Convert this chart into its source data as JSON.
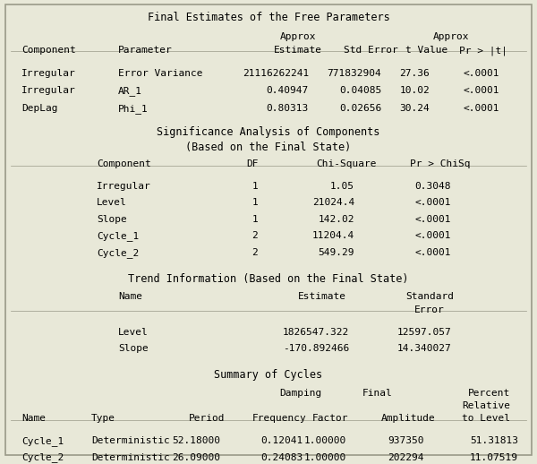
{
  "bg_color": "#e8e8d8",
  "border_color": "#999988",
  "font_family": "monospace",
  "font_size": 8.5,
  "section1_title": "Final Estimates of the Free Parameters",
  "s1_rows": [
    [
      "Irregular",
      "Error Variance",
      "21116262241",
      "771832904",
      "27.36",
      "<.0001"
    ],
    [
      "Irregular",
      "AR_1",
      "0.40947",
      "0.04085",
      "10.02",
      "<.0001"
    ],
    [
      "DepLag",
      "Phi_1",
      "0.80313",
      "0.02656",
      "30.24",
      "<.0001"
    ]
  ],
  "section2_title1": "Significance Analysis of Components",
  "section2_title2": "(Based on the Final State)",
  "s2_rows": [
    [
      "Irregular",
      "1",
      "1.05",
      "0.3048"
    ],
    [
      "Level",
      "1",
      "21024.4",
      "<.0001"
    ],
    [
      "Slope",
      "1",
      "142.02",
      "<.0001"
    ],
    [
      "Cycle_1",
      "2",
      "11204.4",
      "<.0001"
    ],
    [
      "Cycle_2",
      "2",
      "549.29",
      "<.0001"
    ]
  ],
  "section3_title": "Trend Information (Based on the Final State)",
  "s3_rows": [
    [
      "Level",
      "1826547.322",
      "12597.057"
    ],
    [
      "Slope",
      "-170.892466",
      "14.340027"
    ]
  ],
  "section4_title": "Summary of Cycles",
  "s4_rows": [
    [
      "Cycle_1",
      "Deterministic",
      "52.18000",
      "0.12041",
      "1.00000",
      "937350",
      "51.31813"
    ],
    [
      "Cycle_2",
      "Deterministic",
      "26.09000",
      "0.24083",
      "1.00000",
      "202294",
      "11.07519"
    ]
  ]
}
